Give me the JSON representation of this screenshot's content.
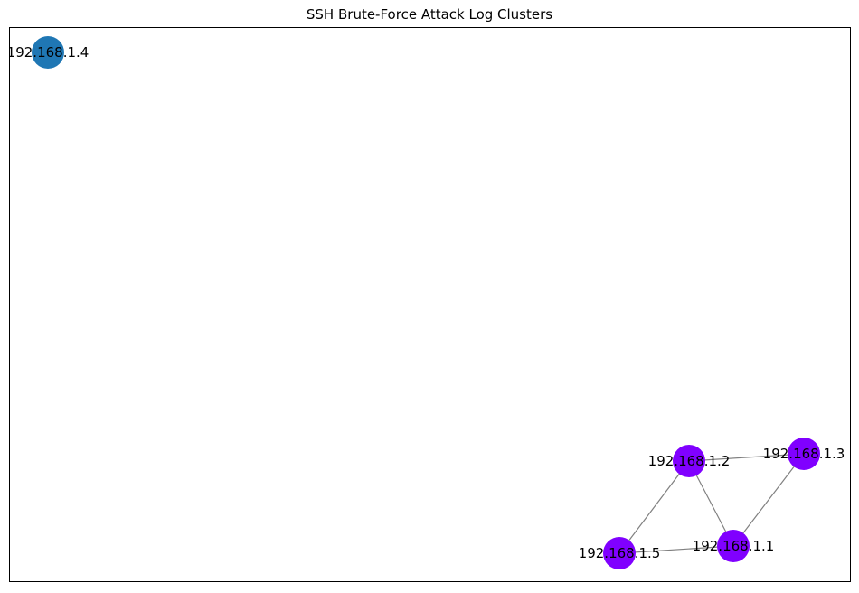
{
  "title": "SSH Brute-Force Attack Log Clusters",
  "graph": {
    "nodes": [
      {
        "id": "192.168.1.4",
        "label": "192.168.1.4",
        "cluster": 0,
        "color": "#1f77b4"
      },
      {
        "id": "192.168.1.2",
        "label": "192.168.1.2",
        "cluster": 1,
        "color": "#8000ff"
      },
      {
        "id": "192.168.1.3",
        "label": "192.168.1.3",
        "cluster": 1,
        "color": "#8000ff"
      },
      {
        "id": "192.168.1.5",
        "label": "192.168.1.5",
        "cluster": 1,
        "color": "#8000ff"
      },
      {
        "id": "192.168.1.1",
        "label": "192.168.1.1",
        "cluster": 1,
        "color": "#8000ff"
      }
    ],
    "edges": [
      {
        "source": "192.168.1.2",
        "target": "192.168.1.3"
      },
      {
        "source": "192.168.1.2",
        "target": "192.168.1.5"
      },
      {
        "source": "192.168.1.2",
        "target": "192.168.1.1"
      },
      {
        "source": "192.168.1.3",
        "target": "192.168.1.1"
      },
      {
        "source": "192.168.1.5",
        "target": "192.168.1.1"
      }
    ],
    "edge_color": "#808080"
  }
}
